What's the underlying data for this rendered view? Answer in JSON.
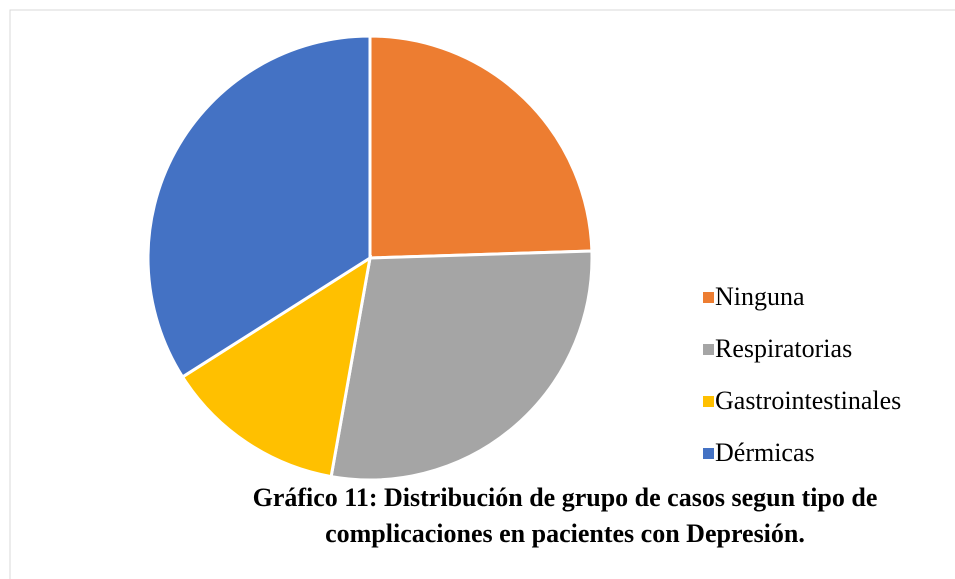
{
  "chart_data": {
    "type": "pie",
    "title": "Gráfico 11: Distribución de grupo de casos segun tipo de complicaciones en pacientes con Depresión.",
    "categories": [
      "Ninguna",
      "Respiratorias",
      "Gastrointestinales",
      "Dérmicas"
    ],
    "values": [
      24.5,
      28.3,
      13.2,
      34
    ],
    "colors": [
      "#ed7d31",
      "#a5a5a5",
      "#ffc000",
      "#4472c4"
    ],
    "legend": "right"
  }
}
